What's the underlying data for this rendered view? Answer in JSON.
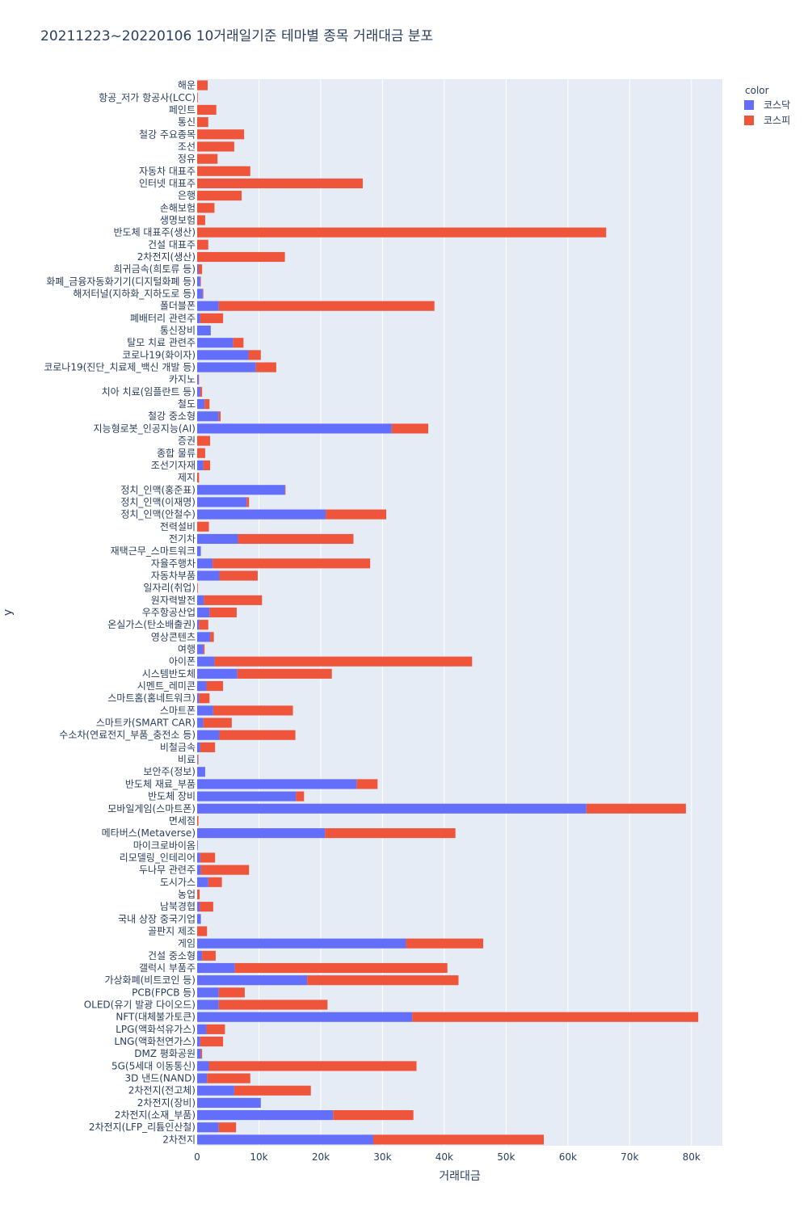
{
  "chart_data": {
    "type": "bar",
    "orientation": "horizontal",
    "barmode": "stack",
    "title": "20211223~20220106 10거래일기준 테마별 종목 거래대금 분포",
    "xlabel": "거래대금",
    "ylabel": "y",
    "xlim": [
      0,
      85000
    ],
    "x_ticks": [
      0,
      10000,
      20000,
      30000,
      40000,
      50000,
      60000,
      70000,
      80000
    ],
    "x_tick_labels": [
      "0",
      "10k",
      "20k",
      "30k",
      "40k",
      "50k",
      "60k",
      "70k",
      "80k"
    ],
    "grid": true,
    "legend": {
      "title": "color",
      "position": "top-right"
    },
    "colors": {
      "코스닥": "#636efa",
      "코스피": "#ef553b",
      "plot_bg": "#e5ecf6",
      "grid": "#ffffff",
      "text": "#2a3f5f"
    },
    "categories": [
      "해운",
      "항공_저가 항공사(LCC)",
      "페인트",
      "통신",
      "철강 주요종목",
      "조선",
      "정유",
      "자동차 대표주",
      "인터넷 대표주",
      "은행",
      "손해보험",
      "생명보험",
      "반도체 대표주(생산)",
      "건설 대표주",
      "2차전지(생산)",
      "희귀금속(희토류 등)",
      "화폐_금융자동화기기(디지털화폐 등)",
      "해저터널(지하화_지하도로 등)",
      "폴더블폰",
      "폐배터리 관련주",
      "통신장비",
      "탈모 치료 관련주",
      "코로나19(화이자)",
      "코로나19(진단_치료제_백신 개발 등)",
      "카지노",
      "치아 치료(임플란트 등)",
      "철도",
      "철강 중소형",
      "지능형로봇_인공지능(AI)",
      "증권",
      "종합 물류",
      "조선기자재",
      "제지",
      "정치_인맥(홍준표)",
      "정치_인맥(이재명)",
      "정치_인맥(안철수)",
      "전력설비",
      "전기차",
      "재택근무_스마트워크",
      "자율주행차",
      "자동차부품",
      "일자리(취업)",
      "원자력발전",
      "우주항공산업",
      "온실가스(탄소배출권)",
      "영상콘텐츠",
      "여행",
      "아이폰",
      "시스템반도체",
      "시멘트_레미콘",
      "스마트홈(홈네트워크)",
      "스마트폰",
      "스마트카(SMART CAR)",
      "수소차(연료전지_부품_충전소 등)",
      "비철금속",
      "비료",
      "보안주(정보)",
      "반도체 재료_부품",
      "반도체 장비",
      "모바일게임(스마트폰)",
      "면세점",
      "메타버스(Metaverse)",
      "마이크로바이옴",
      "리모델링_인테리어",
      "두나무 관련주",
      "도시가스",
      "농업",
      "남북경협",
      "국내 상장 중국기업",
      "골판지 제조",
      "게임",
      "건설 중소형",
      "갤럭시 부품주",
      "가상화폐(비트코인 등)",
      "PCB(FPCB 등)",
      "OLED(유기 발광 다이오드)",
      "NFT(대체불가토큰)",
      "LPG(액화석유가스)",
      "LNG(액화천연가스)",
      "DMZ 평화공원",
      "5G(5세대 이동통신)",
      "3D 낸드(NAND)",
      "2차전지(전고체)",
      "2차전지(장비)",
      "2차전지(소재_부품)",
      "2차전지(LFP_리튬인산철)",
      "2차전지"
    ],
    "series": [
      {
        "name": "코스닥",
        "values": [
          0,
          0,
          0,
          0,
          0,
          0,
          0,
          0,
          0,
          0,
          0,
          0,
          0,
          0,
          0,
          200,
          500,
          900,
          3500,
          500,
          2200,
          5800,
          8300,
          9500,
          200,
          500,
          1200,
          3500,
          31500,
          0,
          0,
          1000,
          0,
          14200,
          8000,
          20800,
          0,
          6600,
          600,
          2500,
          3600,
          0,
          1100,
          2000,
          300,
          2100,
          1000,
          2800,
          6500,
          1500,
          300,
          2600,
          1000,
          3600,
          500,
          100,
          1300,
          25800,
          16000,
          63000,
          0,
          20700,
          100,
          500,
          600,
          1800,
          0,
          400,
          600,
          0,
          33800,
          800,
          6100,
          17800,
          3500,
          3500,
          34800,
          1500,
          500,
          600,
          1900,
          1600,
          6000,
          10300,
          22000,
          3500,
          28500
        ]
      },
      {
        "name": "코스피",
        "values": [
          1700,
          100,
          3100,
          1800,
          7600,
          6000,
          3300,
          8600,
          26800,
          7200,
          2800,
          1300,
          66200,
          1800,
          14200,
          600,
          100,
          100,
          34900,
          3700,
          0,
          1700,
          2000,
          3300,
          100,
          300,
          800,
          300,
          5900,
          2100,
          1300,
          1100,
          300,
          100,
          400,
          9800,
          1900,
          18700,
          0,
          25500,
          6200,
          100,
          9400,
          4400,
          1500,
          600,
          200,
          41700,
          15300,
          2700,
          1700,
          12900,
          4600,
          12300,
          2400,
          100,
          0,
          3400,
          1300,
          16100,
          200,
          21100,
          0,
          2400,
          7800,
          2200,
          400,
          2200,
          0,
          1600,
          12500,
          2200,
          34400,
          24500,
          4200,
          17600,
          46300,
          3000,
          3700,
          200,
          33600,
          7000,
          12400,
          0,
          13000,
          2800,
          27600
        ]
      }
    ]
  }
}
